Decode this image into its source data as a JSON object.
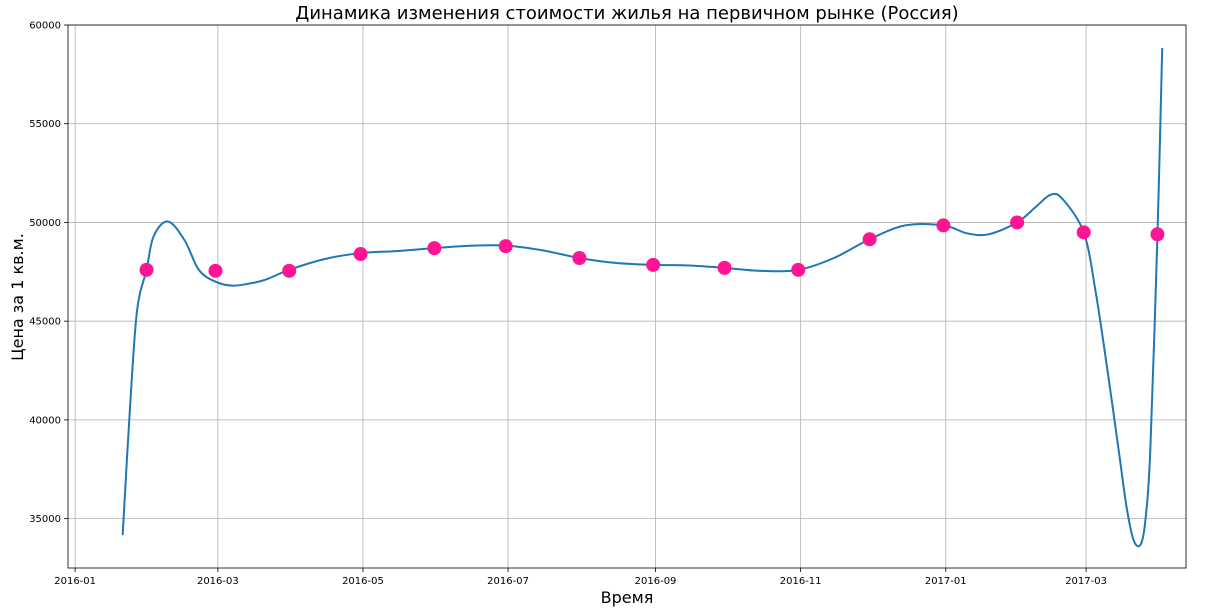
{
  "chart_data": {
    "type": "line",
    "title": "Динамика изменения стоимости жилья на первичном рынке (Россия)",
    "xlabel": "Время",
    "ylabel": "Цена за 1 кв.м.",
    "x_type": "date",
    "xlim": [
      "2015-12-29",
      "2017-04-12"
    ],
    "ylim": [
      32500,
      60000
    ],
    "xticks": [
      {
        "date": "2016-01-01",
        "label": "2016-01"
      },
      {
        "date": "2016-03-01",
        "label": "2016-03"
      },
      {
        "date": "2016-05-01",
        "label": "2016-05"
      },
      {
        "date": "2016-07-01",
        "label": "2016-07"
      },
      {
        "date": "2016-09-01",
        "label": "2016-09"
      },
      {
        "date": "2016-11-01",
        "label": "2016-11"
      },
      {
        "date": "2017-01-01",
        "label": "2017-01"
      },
      {
        "date": "2017-03-01",
        "label": "2017-03"
      }
    ],
    "yticks": [
      35000,
      40000,
      45000,
      50000,
      55000,
      60000
    ],
    "grid": true,
    "series": [
      {
        "style": "points",
        "color": "#ff1493",
        "x": [
          "2016-01-31",
          "2016-02-29",
          "2016-03-31",
          "2016-04-30",
          "2016-05-31",
          "2016-06-30",
          "2016-07-31",
          "2016-08-31",
          "2016-09-30",
          "2016-10-31",
          "2016-11-30",
          "2016-12-31",
          "2017-01-31",
          "2017-02-28",
          "2017-03-31"
        ],
        "y": [
          47600,
          47550,
          47550,
          48400,
          48700,
          48800,
          48200,
          47850,
          47700,
          47600,
          49150,
          49850,
          50000,
          49500,
          49400
        ]
      },
      {
        "style": "line",
        "color": "#1f77b4",
        "x": [
          "2016-01-21",
          "2016-01-24",
          "2016-01-27",
          "2016-01-31",
          "2016-02-03",
          "2016-02-09",
          "2016-02-16",
          "2016-02-22",
          "2016-02-29",
          "2016-03-07",
          "2016-03-14",
          "2016-03-21",
          "2016-03-31",
          "2016-04-15",
          "2016-04-30",
          "2016-05-15",
          "2016-05-31",
          "2016-06-15",
          "2016-06-30",
          "2016-07-15",
          "2016-07-31",
          "2016-08-15",
          "2016-08-31",
          "2016-09-15",
          "2016-09-30",
          "2016-10-15",
          "2016-10-31",
          "2016-11-15",
          "2016-11-30",
          "2016-12-15",
          "2016-12-31",
          "2017-01-10",
          "2017-01-19",
          "2017-01-31",
          "2017-02-08",
          "2017-02-14",
          "2017-02-19",
          "2017-02-28",
          "2017-03-05",
          "2017-03-10",
          "2017-03-15",
          "2017-03-18",
          "2017-03-21",
          "2017-03-24",
          "2017-03-26",
          "2017-03-28",
          "2017-03-31",
          "2017-04-02"
        ],
        "y": [
          34200,
          40500,
          45500,
          47600,
          49300,
          50050,
          49100,
          47600,
          47000,
          46800,
          46900,
          47100,
          47600,
          48150,
          48450,
          48550,
          48700,
          48820,
          48830,
          48600,
          48200,
          47950,
          47850,
          47820,
          47700,
          47550,
          47600,
          48200,
          49150,
          49850,
          49850,
          49450,
          49400,
          50000,
          50800,
          51400,
          51200,
          49500,
          46500,
          42500,
          38200,
          35600,
          33900,
          33700,
          35000,
          38500,
          49400,
          58800
        ]
      }
    ]
  }
}
